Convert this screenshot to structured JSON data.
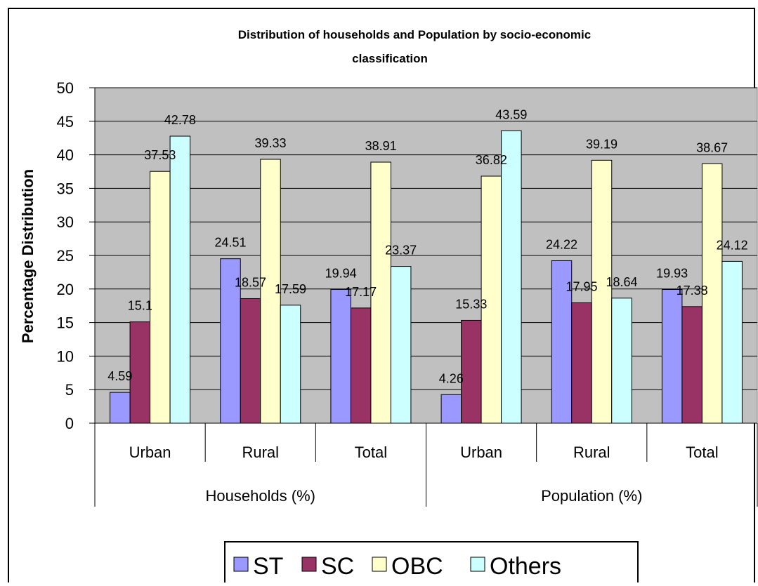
{
  "chart_data": {
    "type": "bar",
    "title": "Distribution of households and Population by socio-economic classification",
    "title_lines": [
      "Distribution of households and Population by socio-economic",
      "classification"
    ],
    "ylabel": "Percentage Distribution",
    "xlabel": "",
    "ylim": [
      0,
      50
    ],
    "yticks": [
      0,
      5,
      10,
      15,
      20,
      25,
      30,
      35,
      40,
      45,
      50
    ],
    "grid": true,
    "legend": "bottom",
    "groups": [
      {
        "label": "Households (%)",
        "categories": [
          "Urban",
          "Rural",
          "Total"
        ]
      },
      {
        "label": "Population (%)",
        "categories": [
          "Urban",
          "Rural",
          "Total"
        ]
      }
    ],
    "categories": [
      "Urban",
      "Rural",
      "Total",
      "Urban",
      "Rural",
      "Total"
    ],
    "series": [
      {
        "name": "ST",
        "color": "#9999FF",
        "values": [
          4.59,
          24.51,
          19.94,
          4.26,
          24.22,
          19.93
        ],
        "labels": [
          "4.59",
          "24.51",
          "19.94",
          "4.26",
          "24.22",
          "19.93"
        ]
      },
      {
        "name": "SC",
        "color": "#993366",
        "values": [
          15.1,
          18.57,
          17.17,
          15.33,
          17.95,
          17.38
        ],
        "labels": [
          "15.1",
          "18.57",
          "17.17",
          "15.33",
          "17.95",
          "17.38"
        ]
      },
      {
        "name": "OBC",
        "color": "#FFFFCC",
        "values": [
          37.53,
          39.33,
          38.91,
          36.82,
          39.19,
          38.67
        ],
        "labels": [
          "37.53",
          "39.33",
          "38.91",
          "36.82",
          "39.19",
          "38.67"
        ]
      },
      {
        "name": "Others",
        "color": "#CCFFFF",
        "values": [
          42.78,
          17.59,
          23.37,
          43.59,
          18.64,
          24.12
        ],
        "labels": [
          "42.78",
          "17.59",
          "23.37",
          "43.59",
          "18.64",
          "24.12"
        ]
      }
    ],
    "plot_background": "#C0C0C0"
  }
}
